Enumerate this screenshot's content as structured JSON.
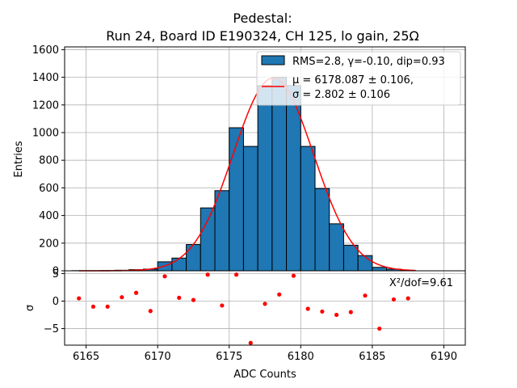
{
  "chart_data": [
    {
      "type": "bar",
      "title_line1": "Pedestal:",
      "title_line2": "Run 24, Board ID E190324, CH 125, lo gain, 25Ω",
      "ylabel": "Entries",
      "xlabel": "",
      "xlim": [
        6163.5,
        6191.5
      ],
      "ylim": [
        0,
        1620
      ],
      "yticks": [
        0,
        200,
        400,
        600,
        800,
        1000,
        1200,
        1400,
        1600
      ],
      "grid": true,
      "legend_position": "top-right",
      "bin_width": 1,
      "bins": [
        {
          "left": 6164,
          "value": 1
        },
        {
          "left": 6165,
          "value": 1
        },
        {
          "left": 6166,
          "value": 2
        },
        {
          "left": 6167,
          "value": 4
        },
        {
          "left": 6168,
          "value": 8
        },
        {
          "left": 6169,
          "value": 12
        },
        {
          "left": 6170,
          "value": 65
        },
        {
          "left": 6171,
          "value": 92
        },
        {
          "left": 6172,
          "value": 190
        },
        {
          "left": 6173,
          "value": 455
        },
        {
          "left": 6174,
          "value": 580
        },
        {
          "left": 6175,
          "value": 1035
        },
        {
          "left": 6176,
          "value": 900
        },
        {
          "left": 6177,
          "value": 1340
        },
        {
          "left": 6178,
          "value": 1400
        },
        {
          "left": 6179,
          "value": 1340
        },
        {
          "left": 6180,
          "value": 900
        },
        {
          "left": 6181,
          "value": 595
        },
        {
          "left": 6182,
          "value": 340
        },
        {
          "left": 6183,
          "value": 185
        },
        {
          "left": 6184,
          "value": 110
        },
        {
          "left": 6185,
          "value": 25
        },
        {
          "left": 6186,
          "value": 12
        },
        {
          "left": 6187,
          "value": 3
        }
      ],
      "fit": {
        "mu": 6178.087,
        "sigma": 2.802,
        "amplitude": 1395,
        "x_start": 6164.5,
        "x_end": 6188.0
      },
      "bar_color": "#1f77b4",
      "fit_color": "#ff0000",
      "legend": [
        {
          "label": "RMS=2.8, γ=-0.10, dip=0.93",
          "kind": "patch"
        },
        {
          "label_line1": "μ = 6178.087 ± 0.106,",
          "label_line2": "σ = 2.802 ± 0.106",
          "kind": "line"
        }
      ]
    },
    {
      "type": "scatter",
      "xlabel": "ADC Counts",
      "ylabel": "σ",
      "xlim": [
        6163.5,
        6191.5
      ],
      "ylim": [
        -8,
        5.5
      ],
      "xticks": [
        6165,
        6170,
        6175,
        6180,
        6185,
        6190
      ],
      "yticks": [
        -5,
        0,
        5
      ],
      "ytick_labels": [
        "−5",
        "0",
        "5"
      ],
      "grid": true,
      "annotation": "X²/dof=9.61",
      "point_color": "#ff0000",
      "points": [
        {
          "x": 6164.5,
          "y": 0.5
        },
        {
          "x": 6165.5,
          "y": -1.0
        },
        {
          "x": 6166.5,
          "y": -1.0
        },
        {
          "x": 6167.5,
          "y": 0.7
        },
        {
          "x": 6168.5,
          "y": 1.5
        },
        {
          "x": 6169.5,
          "y": -1.8
        },
        {
          "x": 6170.5,
          "y": 4.5
        },
        {
          "x": 6171.5,
          "y": 0.6
        },
        {
          "x": 6172.5,
          "y": 0.2
        },
        {
          "x": 6173.5,
          "y": 4.8
        },
        {
          "x": 6174.5,
          "y": -0.8
        },
        {
          "x": 6175.5,
          "y": 4.8
        },
        {
          "x": 6176.5,
          "y": -7.6
        },
        {
          "x": 6177.5,
          "y": -0.5
        },
        {
          "x": 6178.5,
          "y": 1.2
        },
        {
          "x": 6179.5,
          "y": 4.6
        },
        {
          "x": 6180.5,
          "y": -1.4
        },
        {
          "x": 6181.5,
          "y": -1.9
        },
        {
          "x": 6182.5,
          "y": -2.5
        },
        {
          "x": 6183.5,
          "y": -2.0
        },
        {
          "x": 6184.5,
          "y": 1.0
        },
        {
          "x": 6185.5,
          "y": -5.0
        },
        {
          "x": 6186.5,
          "y": 0.3
        },
        {
          "x": 6187.5,
          "y": 0.5
        }
      ]
    }
  ]
}
